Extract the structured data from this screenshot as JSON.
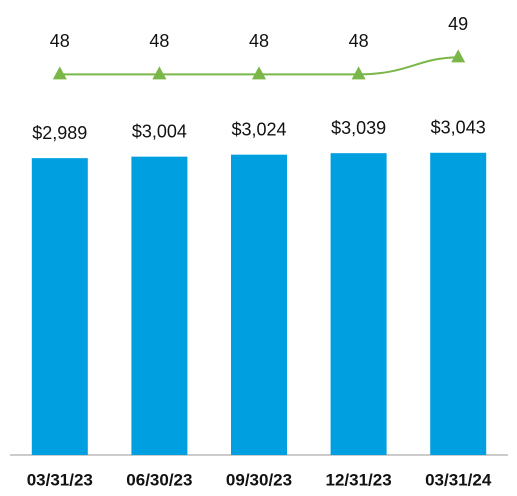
{
  "chart_data": {
    "type": "bar",
    "categories": [
      "03/31/23",
      "06/30/23",
      "09/30/23",
      "12/31/23",
      "03/31/24"
    ],
    "series": [
      {
        "type": "bar",
        "color": "#009fe0",
        "values": [
          2989,
          3004,
          3024,
          3039,
          3043
        ],
        "value_labels": [
          "$2,989",
          "$3,004",
          "$3,024",
          "$3,039",
          "$3,043"
        ]
      },
      {
        "type": "line",
        "axis": "y2",
        "color": "#7ab648",
        "values": [
          48,
          48,
          48,
          48,
          49
        ]
      }
    ],
    "ylim": [
      0,
      4380
    ],
    "y2lim": [
      25.6,
      51.2
    ]
  }
}
